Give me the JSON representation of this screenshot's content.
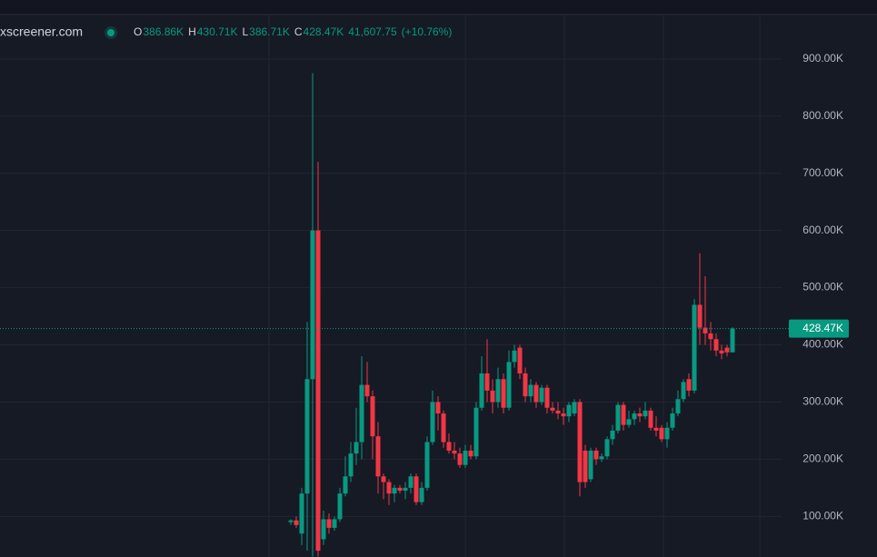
{
  "chart_data": {
    "type": "candlestick",
    "source": "xscreener.com",
    "ohlc_legend": [
      {
        "key": "O",
        "value": "386.86K"
      },
      {
        "key": "H",
        "value": "430.71K"
      },
      {
        "key": "L",
        "value": "386.71K"
      },
      {
        "key": "C",
        "value": "428.47K"
      }
    ],
    "change": "41,607.75",
    "change_pct": "(+10.76%)",
    "up_color": "#089981",
    "down_color": "#f23645",
    "grid": true,
    "ylim": [
      29000,
      1003000
    ],
    "yticks": [
      {
        "value": 100000,
        "label": "100.00K"
      },
      {
        "value": 200000,
        "label": "200.00K"
      },
      {
        "value": 300000,
        "label": "300.00K"
      },
      {
        "value": 400000,
        "label": "400.00K"
      },
      {
        "value": 500000,
        "label": "500.00K"
      },
      {
        "value": 600000,
        "label": "600.00K"
      },
      {
        "value": 700000,
        "label": "700.00K"
      },
      {
        "value": 800000,
        "label": "800.00K"
      },
      {
        "value": 900000,
        "label": "900.00K"
      }
    ],
    "last_price": {
      "value": 428470,
      "label": "428.47K"
    },
    "open": [
      90000,
      93000,
      70000,
      140000,
      340000,
      600000,
      60000,
      95000,
      80000,
      95000,
      140000,
      170000,
      210000,
      230000,
      330000,
      310000,
      240000,
      170000,
      160000,
      140000,
      150000,
      145000,
      150000,
      170000,
      125000,
      150000,
      230000,
      300000,
      280000,
      230000,
      215000,
      210000,
      190000,
      215000,
      205000,
      290000,
      350000,
      320000,
      300000,
      340000,
      290000,
      370000,
      395000,
      350000,
      310000,
      330000,
      300000,
      325000,
      290000,
      285000,
      280000,
      275000,
      280000,
      300000,
      215000,
      165000,
      215000,
      200000,
      205000,
      235000,
      250000,
      295000,
      260000,
      270000,
      280000,
      275000,
      285000,
      255000,
      255000,
      235000,
      255000,
      280000,
      305000,
      340000,
      320000,
      470000,
      430000,
      420000,
      410000,
      390000,
      395000,
      386860
    ],
    "high": [
      95000,
      100000,
      150000,
      440000,
      875000,
      720000,
      110000,
      105000,
      100000,
      150000,
      205000,
      230000,
      290000,
      380000,
      370000,
      320000,
      265000,
      175000,
      165000,
      155000,
      155000,
      160000,
      175000,
      175000,
      160000,
      240000,
      320000,
      310000,
      285000,
      245000,
      230000,
      220000,
      225000,
      225000,
      300000,
      380000,
      410000,
      340000,
      360000,
      350000,
      390000,
      400000,
      400000,
      360000,
      340000,
      335000,
      330000,
      330000,
      300000,
      300000,
      290000,
      300000,
      305000,
      305000,
      225000,
      220000,
      220000,
      210000,
      240000,
      260000,
      300000,
      300000,
      285000,
      285000,
      290000,
      300000,
      290000,
      275000,
      260000,
      265000,
      290000,
      320000,
      340000,
      350000,
      480000,
      560000,
      520000,
      440000,
      420000,
      400000,
      400000,
      430710
    ],
    "low": [
      85000,
      80000,
      50000,
      40000,
      30000,
      30000,
      50000,
      70000,
      75000,
      90000,
      135000,
      160000,
      190000,
      200000,
      300000,
      200000,
      140000,
      130000,
      120000,
      125000,
      140000,
      130000,
      140000,
      120000,
      120000,
      145000,
      225000,
      250000,
      220000,
      210000,
      200000,
      185000,
      185000,
      200000,
      200000,
      285000,
      300000,
      280000,
      290000,
      280000,
      285000,
      360000,
      340000,
      300000,
      300000,
      290000,
      295000,
      280000,
      280000,
      270000,
      260000,
      265000,
      275000,
      135000,
      150000,
      160000,
      190000,
      195000,
      200000,
      225000,
      245000,
      250000,
      255000,
      260000,
      265000,
      270000,
      250000,
      240000,
      230000,
      220000,
      250000,
      275000,
      300000,
      310000,
      315000,
      400000,
      400000,
      390000,
      380000,
      375000,
      380000,
      386710
    ],
    "close": [
      93000,
      85000,
      140000,
      340000,
      600000,
      40000,
      95000,
      80000,
      95000,
      140000,
      170000,
      210000,
      230000,
      330000,
      310000,
      240000,
      170000,
      160000,
      140000,
      150000,
      145000,
      150000,
      170000,
      125000,
      150000,
      230000,
      300000,
      280000,
      230000,
      215000,
      210000,
      190000,
      215000,
      205000,
      290000,
      350000,
      320000,
      300000,
      340000,
      290000,
      370000,
      390000,
      350000,
      310000,
      330000,
      300000,
      325000,
      290000,
      285000,
      280000,
      275000,
      295000,
      300000,
      160000,
      160000,
      215000,
      200000,
      205000,
      235000,
      250000,
      295000,
      260000,
      270000,
      280000,
      275000,
      285000,
      255000,
      250000,
      235000,
      255000,
      280000,
      305000,
      335000,
      320000,
      470000,
      430000,
      420000,
      410000,
      390000,
      385000,
      387000,
      428470
    ]
  }
}
